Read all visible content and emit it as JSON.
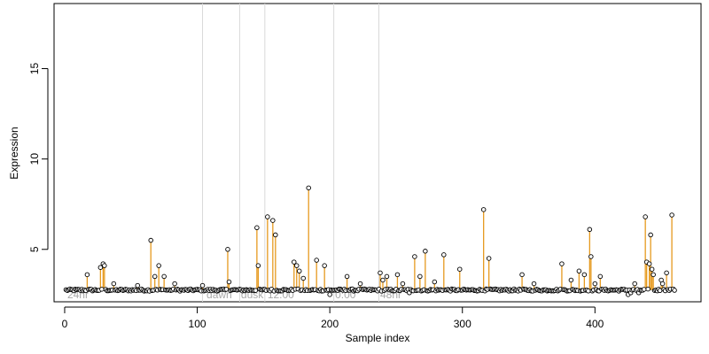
{
  "chart_data": {
    "type": "scatter",
    "xlabel": "Sample index",
    "ylabel": "Expression",
    "xlim": [
      -8,
      480
    ],
    "ylim": [
      2.1,
      18.6
    ],
    "x_ticks": [
      0,
      100,
      200,
      300,
      400
    ],
    "y_ticks": [
      5,
      10,
      15
    ],
    "grid": false,
    "baseline": 2.75,
    "colors": {
      "stem": "#e69a1f",
      "line": "#8ea6cf",
      "divider": "#d9d9d9",
      "label": "#a8a8a8",
      "point_fill": "#ffffff",
      "point_stroke": "#000000"
    },
    "condition_boundaries": [
      104,
      132,
      151,
      203,
      237
    ],
    "condition_labels": [
      {
        "x": 2,
        "text": "24hr"
      },
      {
        "x": 107,
        "text": "dawn"
      },
      {
        "x": 133,
        "text": "dusk"
      },
      {
        "x": 153,
        "text": "12:00"
      },
      {
        "x": 204,
        "text": "0:00"
      },
      {
        "x": 238,
        "text": "48hr"
      }
    ],
    "n_samples": 460,
    "peaks": [
      [
        17,
        3.6
      ],
      [
        27,
        4.0
      ],
      [
        29,
        4.2
      ],
      [
        30,
        4.1
      ],
      [
        37,
        3.1
      ],
      [
        55,
        3.0
      ],
      [
        65,
        5.5
      ],
      [
        68,
        3.5
      ],
      [
        71,
        4.1
      ],
      [
        75,
        3.5
      ],
      [
        83,
        3.1
      ],
      [
        104,
        3.0
      ],
      [
        123,
        5.0
      ],
      [
        124,
        3.2
      ],
      [
        145,
        6.2
      ],
      [
        146,
        4.1
      ],
      [
        153,
        6.8
      ],
      [
        157,
        6.6
      ],
      [
        159,
        5.8
      ],
      [
        173,
        4.3
      ],
      [
        175,
        4.1
      ],
      [
        177,
        3.8
      ],
      [
        180,
        3.4
      ],
      [
        184,
        8.4
      ],
      [
        190,
        4.4
      ],
      [
        196,
        4.1
      ],
      [
        213,
        3.5
      ],
      [
        223,
        3.1
      ],
      [
        238,
        3.7
      ],
      [
        240,
        3.3
      ],
      [
        243,
        3.5
      ],
      [
        251,
        3.6
      ],
      [
        255,
        3.1
      ],
      [
        264,
        4.6
      ],
      [
        268,
        3.5
      ],
      [
        272,
        4.9
      ],
      [
        279,
        3.2
      ],
      [
        286,
        4.7
      ],
      [
        298,
        3.9
      ],
      [
        316,
        7.2
      ],
      [
        320,
        4.5
      ],
      [
        345,
        3.6
      ],
      [
        354,
        3.1
      ],
      [
        375,
        4.2
      ],
      [
        382,
        3.3
      ],
      [
        388,
        3.8
      ],
      [
        392,
        3.6
      ],
      [
        396,
        6.1
      ],
      [
        397,
        4.6
      ],
      [
        400,
        3.1
      ],
      [
        404,
        3.5
      ],
      [
        430,
        3.1
      ],
      [
        438,
        6.8
      ],
      [
        439,
        4.3
      ],
      [
        441,
        4.2
      ],
      [
        442,
        5.8
      ],
      [
        443,
        3.9
      ],
      [
        444,
        3.6
      ],
      [
        450,
        3.3
      ],
      [
        451,
        3.1
      ],
      [
        454,
        3.7
      ],
      [
        458,
        6.9
      ]
    ],
    "low_points": [
      [
        200,
        2.5
      ],
      [
        260,
        2.6
      ],
      [
        425,
        2.5
      ],
      [
        427,
        2.6
      ],
      [
        433,
        2.6
      ]
    ]
  }
}
